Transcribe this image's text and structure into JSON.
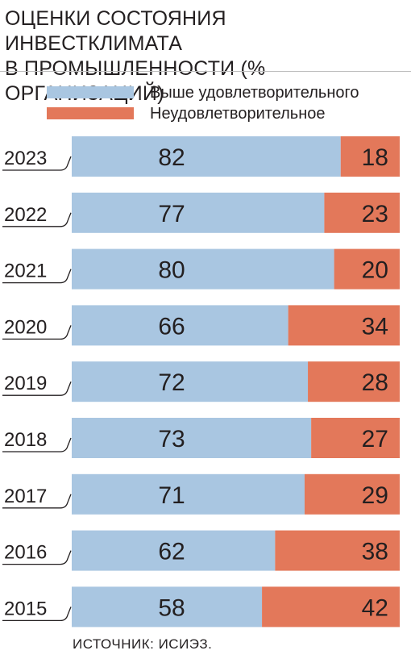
{
  "header": {
    "title_line1": "ОЦЕНКИ СОСТОЯНИЯ ИНВЕСТКЛИМАТА",
    "title_line2": "В ПРОМЫШЛЕННОСТИ (% ОРГАНИЗАЦИЙ)"
  },
  "colors": {
    "above": "#a9c6e1",
    "unsat": "#e3785a",
    "text": "#231f20"
  },
  "chart_data": {
    "type": "bar",
    "orientation": "horizontal",
    "stacked": true,
    "categories": [
      "2023",
      "2022",
      "2021",
      "2020",
      "2019",
      "2018",
      "2017",
      "2016",
      "2015"
    ],
    "series": [
      {
        "name": "Выше удовлетворительного",
        "values": [
          82,
          77,
          80,
          66,
          72,
          73,
          71,
          62,
          58
        ]
      },
      {
        "name": "Неудовлетворительное",
        "values": [
          18,
          23,
          20,
          34,
          28,
          27,
          29,
          38,
          42
        ]
      }
    ],
    "xlim": [
      0,
      100
    ],
    "legend_position": "top",
    "grid": false
  },
  "footer": {
    "source": "ИСТОЧНИК: ИСИЭЗ."
  }
}
